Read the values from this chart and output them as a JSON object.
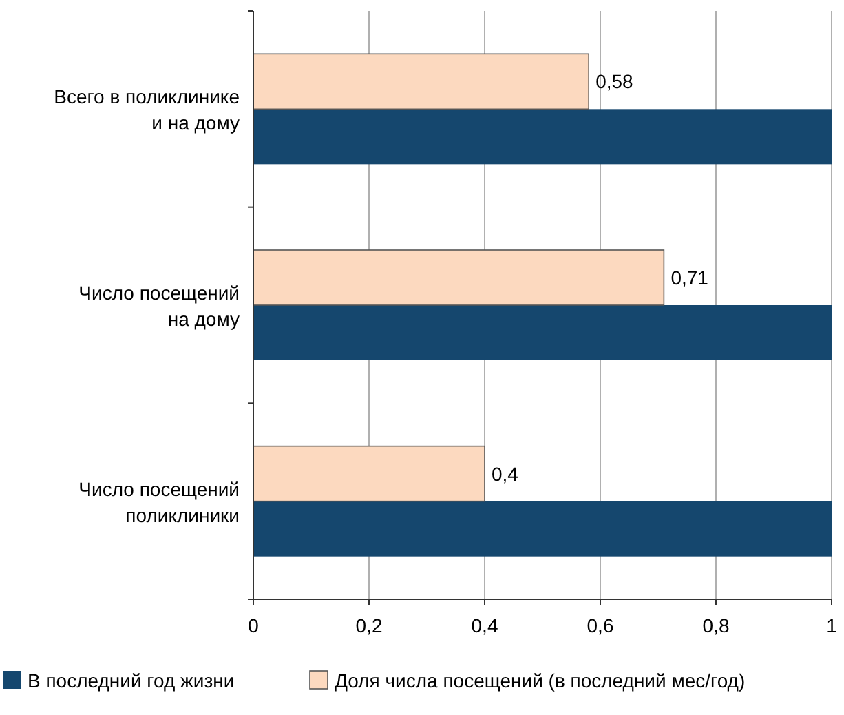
{
  "chart_data": {
    "type": "bar",
    "orientation": "horizontal",
    "categories": [
      "Всего в поликлинике\nи на дому",
      "Число посещений\nна дому",
      "Число посещений\nполиклиники"
    ],
    "series": [
      {
        "name": "В последний год жизни",
        "color": "#15476e",
        "values": [
          1,
          1,
          1
        ]
      },
      {
        "name": "Доля числа посещений (в последний мес/год)",
        "color": "#fcd9bf",
        "values": [
          0.58,
          0.71,
          0.4
        ],
        "value_labels": [
          "0,58",
          "0,71",
          "0,4"
        ]
      }
    ],
    "xlim": [
      0,
      1
    ],
    "xticks": [
      0,
      {
        "value": 0.2,
        "label": "0,2"
      },
      {
        "value": 0.4,
        "label": "0,4"
      },
      {
        "value": 0.6,
        "label": "0,6"
      },
      {
        "value": 0.8,
        "label": "0,8"
      },
      1
    ],
    "grid": "x",
    "legend": "bottom"
  }
}
